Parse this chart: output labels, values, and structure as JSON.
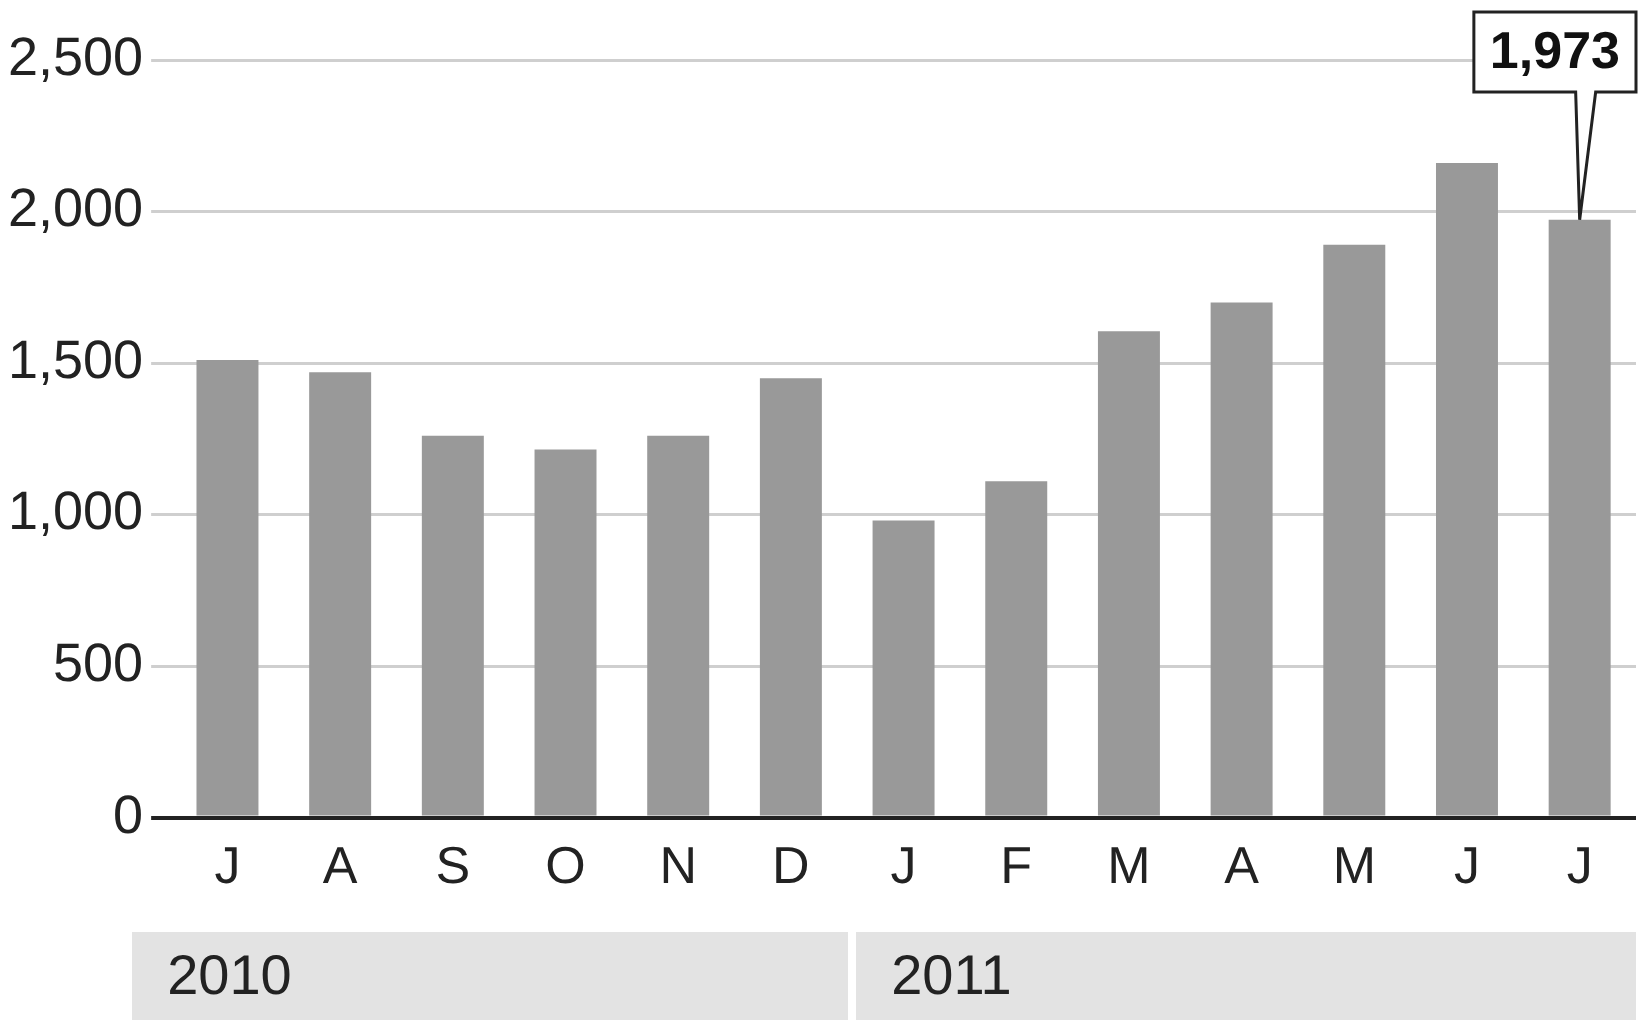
{
  "chart_data": {
    "type": "bar",
    "categories": [
      "J",
      "A",
      "S",
      "O",
      "N",
      "D",
      "J",
      "F",
      "M",
      "A",
      "M",
      "J",
      "J"
    ],
    "values": [
      1510,
      1470,
      1260,
      1215,
      1260,
      1450,
      980,
      1110,
      1605,
      1700,
      1890,
      2160,
      1973
    ],
    "value_labels": [
      null,
      null,
      null,
      null,
      null,
      null,
      null,
      null,
      null,
      null,
      null,
      null,
      "1,973"
    ],
    "color": "#999999",
    "ylim": [
      0,
      2500
    ],
    "yticks": [
      0,
      {
        "value": 500,
        "label": "500"
      },
      {
        "value": 1000,
        "label": "1,000"
      },
      {
        "value": 1500,
        "label": "1,500"
      },
      {
        "value": 2000,
        "label": "2,000"
      },
      {
        "value": 2500,
        "label": "2,500"
      }
    ],
    "grid": "y",
    "annotations": [
      "2010",
      "2011"
    ]
  }
}
